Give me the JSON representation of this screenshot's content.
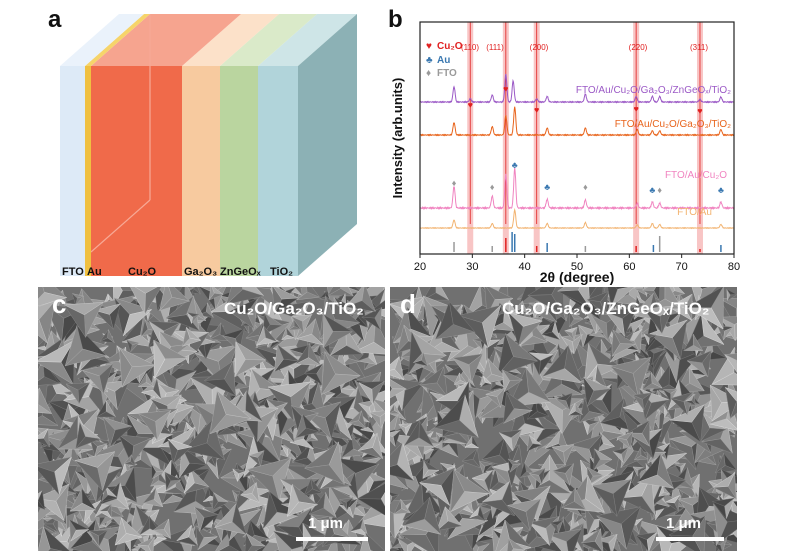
{
  "panel_a": {
    "letter": "a",
    "labels": {
      "fto": "FTO",
      "au": "Au",
      "cu2o": "Cu₂O",
      "ga2o3": "Ga₂O₃",
      "zngeox": "ZnGeOₓ",
      "tio2": "TiO₂"
    },
    "colors": {
      "fto": "#dbe9f7",
      "au": "#f0c040",
      "cu2o": "#f06a4a",
      "ga2o3": "#f7c79a",
      "zngeox": "#b6d39a",
      "tio2": "#a9cfd6"
    }
  },
  "panel_b": {
    "letter": "b",
    "legend": {
      "cu2o": {
        "symbol": "♥",
        "text": "Cu₂O",
        "color": "#e02020"
      },
      "au": {
        "symbol": "♣",
        "text": "Au",
        "color": "#3a78b0"
      },
      "fto": {
        "symbol": "♦",
        "text": "FTO",
        "color": "#9a9a9a"
      }
    },
    "peak_labels": [
      "(110)",
      "(111)",
      "(200)",
      "(220)",
      "(311)"
    ],
    "curve_labels": {
      "full": "FTO/Au/Cu₂O/Ga₂O₃/ZnGeOₓ/TiO₂",
      "ga": "FTO/Au/Cu₂O/Ga₂O₃/TiO₂",
      "cu2o": "FTO/Au/Cu₂O",
      "au": "FTO/Au"
    }
  },
  "chart_data": {
    "type": "line",
    "xlabel": "2θ (degree)",
    "ylabel": "Intensity (arb.units)",
    "xlim": [
      20,
      80
    ],
    "xticks": [
      20,
      30,
      40,
      50,
      60,
      70,
      80
    ],
    "highlight_peaks_cu2o": [
      29.6,
      36.4,
      42.3,
      61.3,
      73.5
    ],
    "series": [
      {
        "name": "FTO/Au/Cu₂O/Ga₂O₃/ZnGeOₓ/TiO₂",
        "color": "#9b59c6",
        "peaks": [
          [
            26.5,
            0.55
          ],
          [
            29.6,
            0.12
          ],
          [
            33.8,
            0.25
          ],
          [
            36.4,
            1.0
          ],
          [
            37.8,
            0.75
          ],
          [
            42.3,
            0.12
          ],
          [
            44.3,
            0.2
          ],
          [
            51.6,
            0.28
          ],
          [
            61.3,
            0.2
          ],
          [
            64.4,
            0.2
          ],
          [
            65.8,
            0.2
          ],
          [
            73.5,
            0.1
          ],
          [
            77.5,
            0.18
          ]
        ]
      },
      {
        "name": "FTO/Au/Cu₂O/Ga₂O₃/TiO₂",
        "color": "#e8641c",
        "peaks": [
          [
            26.5,
            0.45
          ],
          [
            33.8,
            0.3
          ],
          [
            36.4,
            0.7
          ],
          [
            38.1,
            1.0
          ],
          [
            44.3,
            0.25
          ],
          [
            51.6,
            0.25
          ],
          [
            61.5,
            0.2
          ],
          [
            64.4,
            0.15
          ],
          [
            65.8,
            0.15
          ],
          [
            77.5,
            0.2
          ]
        ]
      },
      {
        "name": "FTO/Au/Cu₂O",
        "color": "#f084c0",
        "peaks": [
          [
            26.5,
            0.55
          ],
          [
            33.8,
            0.3
          ],
          [
            36.4,
            0.85
          ],
          [
            38.1,
            1.0
          ],
          [
            44.3,
            0.22
          ],
          [
            51.6,
            0.2
          ],
          [
            61.5,
            0.12
          ],
          [
            64.4,
            0.15
          ],
          [
            65.8,
            0.12
          ],
          [
            77.5,
            0.15
          ]
        ]
      },
      {
        "name": "FTO/Au",
        "color": "#f2b370",
        "peaks": [
          [
            26.5,
            0.45
          ],
          [
            33.8,
            0.25
          ],
          [
            38.1,
            1.0
          ],
          [
            44.3,
            0.25
          ],
          [
            51.6,
            0.3
          ],
          [
            61.5,
            0.18
          ],
          [
            64.4,
            0.25
          ],
          [
            65.8,
            0.2
          ],
          [
            77.5,
            0.2
          ]
        ]
      }
    ],
    "reference_sticks": [
      {
        "x": 26.5,
        "h": 0.5,
        "color": "#9a9a9a"
      },
      {
        "x": 33.8,
        "h": 0.3,
        "color": "#9a9a9a"
      },
      {
        "x": 36.4,
        "h": 0.7,
        "color": "#e02020"
      },
      {
        "x": 37.6,
        "h": 1.0,
        "color": "#3a78b0"
      },
      {
        "x": 38.1,
        "h": 0.9,
        "color": "#3a78b0"
      },
      {
        "x": 42.3,
        "h": 0.3,
        "color": "#e02020"
      },
      {
        "x": 44.3,
        "h": 0.45,
        "color": "#3a78b0"
      },
      {
        "x": 51.6,
        "h": 0.3,
        "color": "#9a9a9a"
      },
      {
        "x": 61.3,
        "h": 0.3,
        "color": "#e02020"
      },
      {
        "x": 64.6,
        "h": 0.35,
        "color": "#3a78b0"
      },
      {
        "x": 65.8,
        "h": 0.8,
        "color": "#9a9a9a"
      },
      {
        "x": 73.5,
        "h": 0.15,
        "color": "#e02020"
      },
      {
        "x": 77.5,
        "h": 0.35,
        "color": "#3a78b0"
      }
    ]
  },
  "panel_c": {
    "letter": "c",
    "title": "Cu₂O/Ga₂O₃/TiO₂",
    "scale": "1 μm"
  },
  "panel_d": {
    "letter": "d",
    "title": "Cu₂O/Ga₂O₃/ZnGeOₓ/TiO₂",
    "scale": "1 μm"
  }
}
